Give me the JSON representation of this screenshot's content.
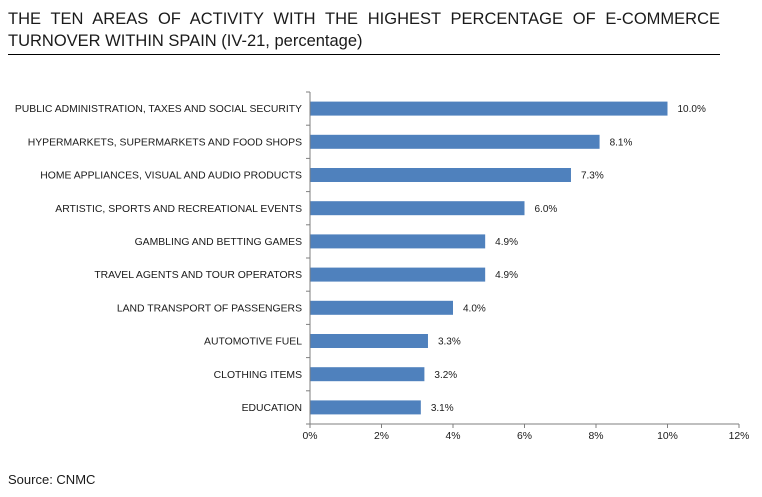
{
  "header": {
    "title": "THE TEN AREAS OF ACTIVITY WITH THE HIGHEST PERCENTAGE OF E-COMMERCE TURNOVER WITHIN SPAIN (IV-21, percentage)"
  },
  "footer": {
    "source": "Source: CNMC"
  },
  "chart_data": {
    "type": "bar",
    "orientation": "horizontal",
    "categories": [
      "PUBLIC ADMINISTRATION, TAXES AND SOCIAL SECURITY",
      "HYPERMARKETS, SUPERMARKETS AND FOOD SHOPS",
      "HOME APPLIANCES, VISUAL AND AUDIO PRODUCTS",
      "ARTISTIC, SPORTS AND RECREATIONAL EVENTS",
      "GAMBLING AND BETTING GAMES",
      "TRAVEL AGENTS AND TOUR OPERATORS",
      "LAND TRANSPORT OF PASSENGERS",
      "AUTOMOTIVE FUEL",
      "CLOTHING ITEMS",
      "EDUCATION"
    ],
    "values": [
      10.0,
      8.1,
      7.3,
      6.0,
      4.9,
      4.9,
      4.0,
      3.3,
      3.2,
      3.1
    ],
    "value_labels": [
      "10.0%",
      "8.1%",
      "7.3%",
      "6.0%",
      "4.9%",
      "4.9%",
      "4.0%",
      "3.3%",
      "3.2%",
      "3.1%"
    ],
    "xlim": [
      0,
      12
    ],
    "xticks": [
      0,
      2,
      4,
      6,
      8,
      10,
      12
    ],
    "xtick_labels": [
      "0%",
      "2%",
      "4%",
      "6%",
      "8%",
      "10%",
      "12%"
    ],
    "bar_color": "#4f81bd",
    "grid": false,
    "legend": "none"
  }
}
